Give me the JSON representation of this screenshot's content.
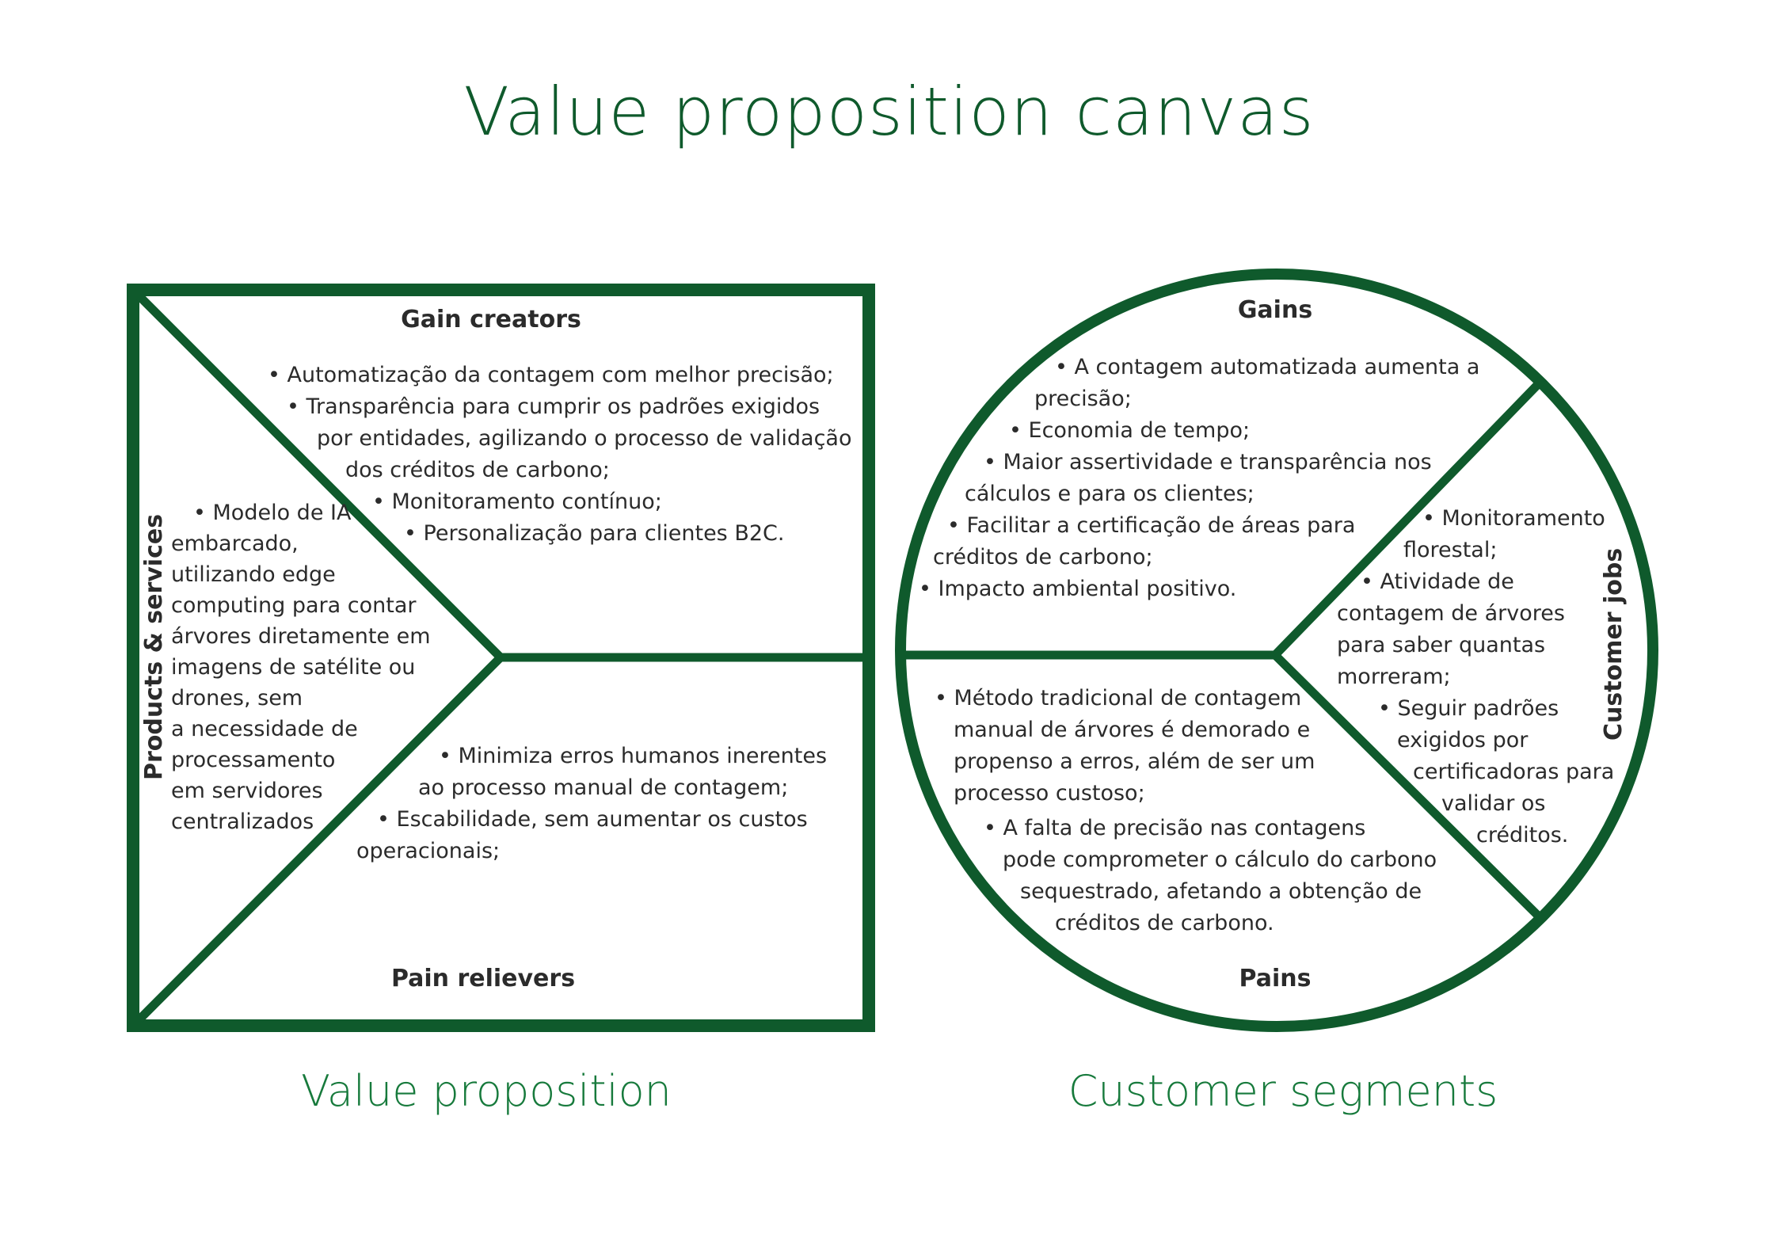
{
  "title": "Value proposition canvas",
  "colors": {
    "frame": "#0f5a2c",
    "title": "#0f5a2c",
    "caption": "#177a3c",
    "text": "#2b2b2b"
  },
  "value_proposition": {
    "caption": "Value proposition",
    "gain_creators": {
      "heading": "Gain creators",
      "lines": [
        "• Automatização da contagem com melhor precisão;",
        "• Transparência para cumprir os padrões exigidos",
        "por entidades, agilizando o processo de validação",
        "dos créditos de carbono;",
        "• Monitoramento contínuo;",
        "• Personalização para clientes B2C."
      ]
    },
    "products_services": {
      "heading": "Products & services",
      "lines": [
        "• Modelo de IA",
        "embarcado,",
        "utilizando edge",
        "computing para contar",
        "árvores diretamente em",
        "imagens de satélite ou",
        "drones, sem",
        "a necessidade de",
        "processamento",
        "em servidores",
        "centralizados"
      ]
    },
    "pain_relievers": {
      "heading": "Pain relievers",
      "lines": [
        "• Minimiza erros humanos inerentes",
        "ao processo manual de contagem;",
        "• Escabilidade, sem aumentar os custos",
        "operacionais;"
      ]
    }
  },
  "customer_segments": {
    "caption": "Customer segments",
    "gains": {
      "heading": "Gains",
      "lines": [
        "• A contagem automatizada aumenta a",
        "precisão;",
        "• Economia de tempo;",
        "• Maior assertividade e transparência nos",
        "cálculos e para os clientes;",
        "• Facilitar a certificação de áreas para",
        "créditos de carbono;",
        "• Impacto ambiental positivo."
      ]
    },
    "customer_jobs": {
      "heading": "Customer jobs",
      "lines": [
        "• Monitoramento",
        "florestal;",
        "• Atividade de",
        "contagem de árvores",
        "para saber quantas",
        "morreram;",
        "• Seguir padrões",
        "exigidos por",
        "certificadoras para",
        "validar os",
        "créditos."
      ]
    },
    "pains": {
      "heading": "Pains",
      "lines": [
        "• Método tradicional de contagem",
        "manual de árvores é demorado e",
        "propenso a erros, além de ser um",
        "processo custoso;",
        "• A falta de precisão nas contagens",
        "pode comprometer o cálculo do carbono",
        "sequestrado, afetando a obtenção de",
        "créditos de carbono."
      ]
    }
  }
}
